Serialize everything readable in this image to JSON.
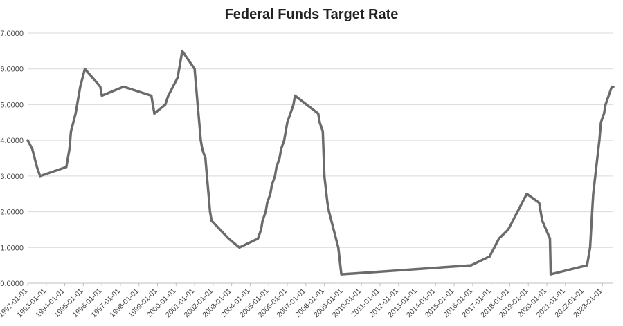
{
  "chart_data": {
    "type": "line",
    "title": "Federal Funds Target Rate",
    "ylim": [
      0,
      7
    ],
    "y_ticks": [
      0,
      1,
      2,
      3,
      4,
      5,
      6,
      7
    ],
    "y_tick_labels": [
      "0.0000",
      "1.0000",
      "2.0000",
      "3.0000",
      "4.0000",
      "5.0000",
      "6.0000",
      "7.0000"
    ],
    "x_tick_labels": [
      "1992-01-01",
      "1993-01-01",
      "1994-01-01",
      "1995-01-01",
      "1996-01-01",
      "1997-01-01",
      "1998-01-01",
      "1999-01-01",
      "2000-01-01",
      "2001-01-01",
      "2002-01-01",
      "2003-01-01",
      "2004-01-01",
      "2005-01-01",
      "2006-01-01",
      "2007-01-01",
      "2008-01-01",
      "2009-01-01",
      "2010-01-01",
      "2011-01-01",
      "2012-01-01",
      "2013-01-01",
      "2014-01-01",
      "2015-01-01",
      "2016-01-01",
      "2017-01-01",
      "2018-01-01",
      "2019-01-01",
      "2020-01-01",
      "2021-01-01",
      "2022-01-01",
      "2023-01-01"
    ],
    "x_range": [
      "1992-01-01",
      "2023-08-01"
    ],
    "grid": "horizontal",
    "colors": {
      "line": "#6b6b6b"
    },
    "series": [
      {
        "points": [
          [
            "1992-01-01",
            4.0
          ],
          [
            "1992-04-01",
            3.75
          ],
          [
            "1992-07-01",
            3.25
          ],
          [
            "1992-09-01",
            3.0
          ],
          [
            "1994-02-01",
            3.25
          ],
          [
            "1994-03-01",
            3.5
          ],
          [
            "1994-04-01",
            3.75
          ],
          [
            "1994-05-01",
            4.25
          ],
          [
            "1994-08-01",
            4.75
          ],
          [
            "1994-11-01",
            5.5
          ],
          [
            "1995-02-01",
            6.0
          ],
          [
            "1995-07-01",
            5.75
          ],
          [
            "1995-12-01",
            5.5
          ],
          [
            "1996-01-01",
            5.25
          ],
          [
            "1997-03-01",
            5.5
          ],
          [
            "1998-09-01",
            5.25
          ],
          [
            "1998-10-01",
            5.0
          ],
          [
            "1998-11-01",
            4.75
          ],
          [
            "1999-06-01",
            5.0
          ],
          [
            "1999-08-01",
            5.25
          ],
          [
            "1999-11-01",
            5.5
          ],
          [
            "2000-02-01",
            5.75
          ],
          [
            "2000-03-01",
            6.0
          ],
          [
            "2000-05-01",
            6.5
          ],
          [
            "2001-01-01",
            6.0
          ],
          [
            "2001-01-31",
            5.5
          ],
          [
            "2001-03-01",
            5.0
          ],
          [
            "2001-04-01",
            4.5
          ],
          [
            "2001-05-01",
            4.0
          ],
          [
            "2001-06-01",
            3.75
          ],
          [
            "2001-08-01",
            3.5
          ],
          [
            "2001-09-01",
            3.0
          ],
          [
            "2001-10-01",
            2.5
          ],
          [
            "2001-11-01",
            2.0
          ],
          [
            "2001-12-01",
            1.75
          ],
          [
            "2002-11-01",
            1.25
          ],
          [
            "2003-06-01",
            1.0
          ],
          [
            "2004-06-01",
            1.25
          ],
          [
            "2004-08-01",
            1.5
          ],
          [
            "2004-09-01",
            1.75
          ],
          [
            "2004-11-01",
            2.0
          ],
          [
            "2004-12-01",
            2.25
          ],
          [
            "2005-02-01",
            2.5
          ],
          [
            "2005-03-01",
            2.75
          ],
          [
            "2005-05-01",
            3.0
          ],
          [
            "2005-06-01",
            3.25
          ],
          [
            "2005-08-01",
            3.5
          ],
          [
            "2005-09-01",
            3.75
          ],
          [
            "2005-11-01",
            4.0
          ],
          [
            "2005-12-01",
            4.25
          ],
          [
            "2006-01-01",
            4.5
          ],
          [
            "2006-03-01",
            4.75
          ],
          [
            "2006-05-01",
            5.0
          ],
          [
            "2006-06-01",
            5.25
          ],
          [
            "2007-09-01",
            4.75
          ],
          [
            "2007-10-01",
            4.5
          ],
          [
            "2007-12-01",
            4.25
          ],
          [
            "2008-01-01",
            3.0
          ],
          [
            "2008-03-01",
            2.25
          ],
          [
            "2008-04-01",
            2.0
          ],
          [
            "2008-10-01",
            1.0
          ],
          [
            "2008-12-01",
            0.25
          ],
          [
            "2015-12-01",
            0.5
          ],
          [
            "2016-12-01",
            0.75
          ],
          [
            "2017-03-01",
            1.0
          ],
          [
            "2017-06-01",
            1.25
          ],
          [
            "2017-12-01",
            1.5
          ],
          [
            "2018-03-01",
            1.75
          ],
          [
            "2018-06-01",
            2.0
          ],
          [
            "2018-09-01",
            2.25
          ],
          [
            "2018-12-01",
            2.5
          ],
          [
            "2019-08-01",
            2.25
          ],
          [
            "2019-09-01",
            2.0
          ],
          [
            "2019-10-01",
            1.75
          ],
          [
            "2020-03-01",
            1.25
          ],
          [
            "2020-03-16",
            0.25
          ],
          [
            "2022-03-01",
            0.5
          ],
          [
            "2022-05-01",
            1.0
          ],
          [
            "2022-06-01",
            1.75
          ],
          [
            "2022-07-01",
            2.5
          ],
          [
            "2022-09-01",
            3.25
          ],
          [
            "2022-11-01",
            4.0
          ],
          [
            "2022-12-01",
            4.5
          ],
          [
            "2023-02-01",
            4.75
          ],
          [
            "2023-03-01",
            5.0
          ],
          [
            "2023-05-01",
            5.25
          ],
          [
            "2023-07-01",
            5.5
          ],
          [
            "2023-08-01",
            5.5
          ]
        ]
      }
    ]
  }
}
